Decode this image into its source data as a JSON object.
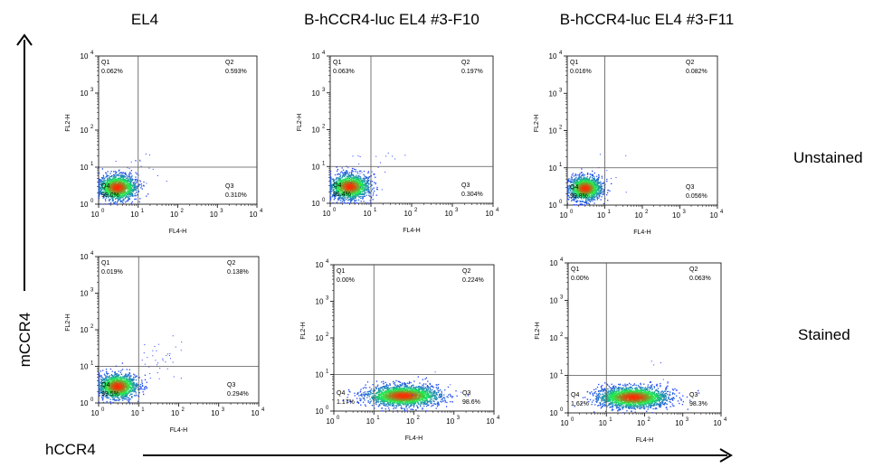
{
  "column_titles": [
    "EL4",
    "B-hCCR4-luc EL4 #3-F10",
    "B-hCCR4-luc EL4 #3-F11"
  ],
  "row_labels": [
    "Unstained",
    "Stained"
  ],
  "y_axis_arrow_label": "mCCR4",
  "x_axis_arrow_label": "hCCR4",
  "colors": {
    "gate_line": "#555555",
    "density_low": "#1f3cff",
    "density_mid": "#1ff24c",
    "density_high": "#ff2a00",
    "axis": "#000000"
  },
  "chart_data": [
    {
      "type": "scatter",
      "panel": "EL4 Unstained",
      "xlabel": "FL4-H",
      "ylabel": "FL2-H",
      "xscale": "log",
      "yscale": "log",
      "xlim": [
        1,
        10000
      ],
      "ylim": [
        1,
        10000
      ],
      "gates": {
        "x": 10,
        "y": 10
      },
      "quadrants": [
        {
          "name": "Q1",
          "value": "0.062%",
          "corner": "top-left"
        },
        {
          "name": "Q2",
          "value": "0.593%",
          "corner": "top-right"
        },
        {
          "name": "Q3",
          "value": "0.310%",
          "corner": "bottom-right"
        },
        {
          "name": "Q4",
          "value": "99.0%",
          "corner": "bottom-left"
        }
      ],
      "population": {
        "x": 3,
        "y": 2.8,
        "sx": 0.24,
        "sy": 0.17,
        "n": 1500
      },
      "tail": {
        "x": 9,
        "y": 9,
        "n": 20
      },
      "x_tick_labels": [
        "10",
        "10",
        "10",
        "10",
        "10"
      ],
      "y_tick_labels": [
        "10",
        "10",
        "10",
        "10",
        "10"
      ],
      "tick_exponents": [
        "0",
        "1",
        "2",
        "3",
        "4"
      ]
    },
    {
      "type": "scatter",
      "panel": "B-hCCR4-luc EL4 #3-F10 Unstained",
      "xlabel": "FL4-H",
      "ylabel": "FL2-H",
      "xscale": "log",
      "yscale": "log",
      "xlim": [
        1,
        10000
      ],
      "ylim": [
        1,
        10000
      ],
      "gates": {
        "x": 10,
        "y": 10
      },
      "quadrants": [
        {
          "name": "Q1",
          "value": "0.063%",
          "corner": "top-left"
        },
        {
          "name": "Q2",
          "value": "0.197%",
          "corner": "top-right"
        },
        {
          "name": "Q3",
          "value": "0.304%",
          "corner": "bottom-right"
        },
        {
          "name": "Q4",
          "value": "99.4%",
          "corner": "bottom-left"
        }
      ],
      "population": {
        "x": 3,
        "y": 2.8,
        "sx": 0.24,
        "sy": 0.17,
        "n": 1500
      },
      "tail": {
        "x": 10,
        "y": 9,
        "n": 25
      },
      "x_tick_labels": [
        "10",
        "10",
        "10",
        "10",
        "10"
      ],
      "y_tick_labels": [
        "10",
        "10",
        "10",
        "10",
        "10"
      ],
      "tick_exponents": [
        "0",
        "1",
        "2",
        "3",
        "4"
      ]
    },
    {
      "type": "scatter",
      "panel": "B-hCCR4-luc EL4 #3-F11 Unstained",
      "xlabel": "FL4-H",
      "ylabel": "FL2-H",
      "xscale": "log",
      "yscale": "log",
      "xlim": [
        1,
        10000
      ],
      "ylim": [
        1,
        10000
      ],
      "gates": {
        "x": 10,
        "y": 10
      },
      "quadrants": [
        {
          "name": "Q1",
          "value": "0.016%",
          "corner": "top-left"
        },
        {
          "name": "Q2",
          "value": "0.082%",
          "corner": "top-right"
        },
        {
          "name": "Q3",
          "value": "0.056%",
          "corner": "bottom-right"
        },
        {
          "name": "Q4",
          "value": "99.8%",
          "corner": "bottom-left"
        }
      ],
      "population": {
        "x": 3,
        "y": 2.8,
        "sx": 0.22,
        "sy": 0.16,
        "n": 1500
      },
      "tail": {
        "x": 8,
        "y": 8,
        "n": 10
      },
      "x_tick_labels": [
        "10",
        "10",
        "10",
        "10",
        "10"
      ],
      "y_tick_labels": [
        "10",
        "10",
        "10",
        "10",
        "10"
      ],
      "tick_exponents": [
        "0",
        "1",
        "2",
        "3",
        "4"
      ]
    },
    {
      "type": "scatter",
      "panel": "EL4 Stained",
      "xlabel": "FL4-H",
      "ylabel": "FL2-H",
      "xscale": "log",
      "yscale": "log",
      "xlim": [
        1,
        10000
      ],
      "ylim": [
        1,
        10000
      ],
      "gates": {
        "x": 10,
        "y": 10
      },
      "quadrants": [
        {
          "name": "Q1",
          "value": "0.019%",
          "corner": "top-left"
        },
        {
          "name": "Q2",
          "value": "0.138%",
          "corner": "top-right"
        },
        {
          "name": "Q3",
          "value": "0.294%",
          "corner": "bottom-right"
        },
        {
          "name": "Q4",
          "value": "99.5%",
          "corner": "bottom-left"
        }
      ],
      "population": {
        "x": 3,
        "y": 2.8,
        "sx": 0.24,
        "sy": 0.17,
        "n": 1500
      },
      "tail": {
        "x": 30,
        "y": 15,
        "n": 35
      },
      "x_tick_labels": [
        "10",
        "10",
        "10",
        "10",
        "10"
      ],
      "y_tick_labels": [
        "10",
        "10",
        "10",
        "10",
        "10"
      ],
      "tick_exponents": [
        "0",
        "1",
        "2",
        "3",
        "4"
      ]
    },
    {
      "type": "scatter",
      "panel": "B-hCCR4-luc EL4 #3-F10 Stained",
      "xlabel": "FL4-H",
      "ylabel": "FL2-H",
      "xscale": "log",
      "yscale": "log",
      "xlim": [
        1,
        10000
      ],
      "ylim": [
        1,
        10000
      ],
      "gates": {
        "x": 10,
        "y": 10
      },
      "quadrants": [
        {
          "name": "Q1",
          "value": "0.00%",
          "corner": "top-left"
        },
        {
          "name": "Q2",
          "value": "0.224%",
          "corner": "top-right"
        },
        {
          "name": "Q3",
          "value": "98.6%",
          "corner": "bottom-right"
        },
        {
          "name": "Q4",
          "value": "1.17%",
          "corner": "bottom-left"
        }
      ],
      "population": {
        "x": 55,
        "y": 2.6,
        "sx": 0.45,
        "sy": 0.14,
        "n": 2200
      },
      "tail": {
        "x": 200,
        "y": 4,
        "n": 10
      },
      "x_tick_labels": [
        "10",
        "10",
        "10",
        "10",
        "10"
      ],
      "y_tick_labels": [
        "10",
        "10",
        "10",
        "10",
        "10"
      ],
      "tick_exponents": [
        "0",
        "1",
        "2",
        "3",
        "4"
      ]
    },
    {
      "type": "scatter",
      "panel": "B-hCCR4-luc EL4 #3-F11 Stained",
      "xlabel": "FL4-H",
      "ylabel": "FL2-H",
      "xscale": "log",
      "yscale": "log",
      "xlim": [
        1,
        10000
      ],
      "ylim": [
        1,
        10000
      ],
      "gates": {
        "x": 10,
        "y": 10
      },
      "quadrants": [
        {
          "name": "Q1",
          "value": "0.00%",
          "corner": "top-left"
        },
        {
          "name": "Q2",
          "value": "0.063%",
          "corner": "top-right"
        },
        {
          "name": "Q3",
          "value": "98.3%",
          "corner": "bottom-right"
        },
        {
          "name": "Q4",
          "value": "1.62%",
          "corner": "bottom-left"
        }
      ],
      "population": {
        "x": 50,
        "y": 2.6,
        "sx": 0.45,
        "sy": 0.14,
        "n": 2200
      },
      "tail": {
        "x": 250,
        "y": 20,
        "n": 5
      },
      "x_tick_labels": [
        "10",
        "10",
        "10",
        "10",
        "10"
      ],
      "y_tick_labels": [
        "10",
        "10",
        "10",
        "10",
        "10"
      ],
      "tick_exponents": [
        "0",
        "1",
        "2",
        "3",
        "4"
      ]
    }
  ]
}
